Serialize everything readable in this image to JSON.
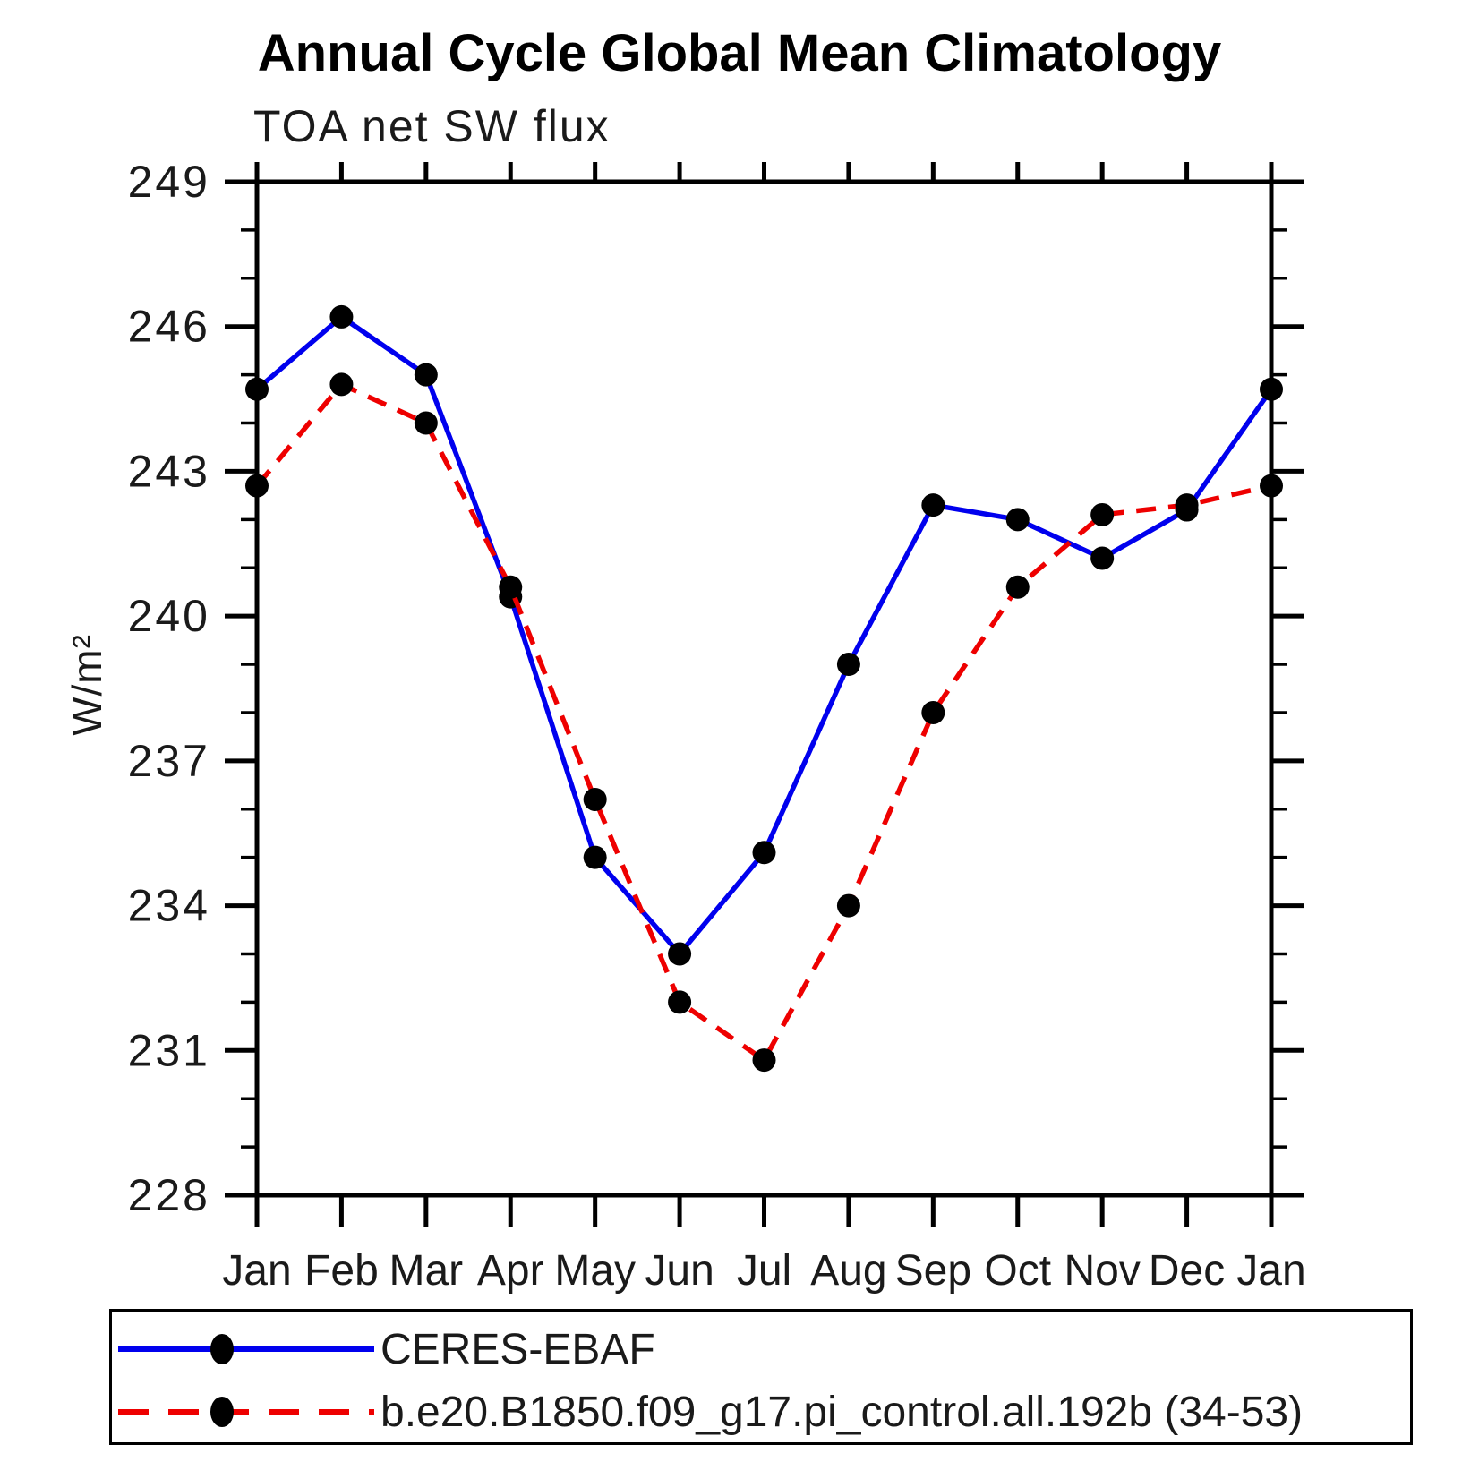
{
  "title": "Annual Cycle Global Mean Climatology",
  "chart_data": {
    "type": "line",
    "title": "Annual Cycle Global Mean Climatology",
    "subtitle": "TOA net SW flux",
    "ylabel": "W/m²",
    "xlabel": "",
    "categories": [
      "Jan",
      "Feb",
      "Mar",
      "Apr",
      "May",
      "Jun",
      "Jul",
      "Aug",
      "Sep",
      "Oct",
      "Nov",
      "Dec",
      "Jan"
    ],
    "series": [
      {
        "name": "CERES-EBAF",
        "color": "#0000ee",
        "line_style": "solid",
        "marker": "filled-circle",
        "marker_color": "#000000",
        "values": [
          244.7,
          246.2,
          245.0,
          240.4,
          235.0,
          233.0,
          235.1,
          239.0,
          242.3,
          242.0,
          241.2,
          242.2,
          244.7
        ]
      },
      {
        "name": "b.e20.B1850.f09_g17.pi_control.all.192b (34-53)",
        "color": "#ee0000",
        "line_style": "dashed",
        "marker": "filled-circle",
        "marker_color": "#000000",
        "values": [
          242.7,
          244.8,
          244.0,
          240.6,
          236.2,
          232.0,
          230.8,
          234.0,
          238.0,
          240.6,
          242.1,
          242.3,
          242.7
        ]
      }
    ],
    "ylim": [
      228,
      249
    ],
    "ytick_major_step": 3,
    "ytick_minor_step": 1,
    "ytick_labels": [
      "228",
      "231",
      "234",
      "237",
      "240",
      "243",
      "246",
      "249"
    ],
    "grid": "off",
    "frame": "box",
    "legend_position": "bottom-left-box"
  }
}
